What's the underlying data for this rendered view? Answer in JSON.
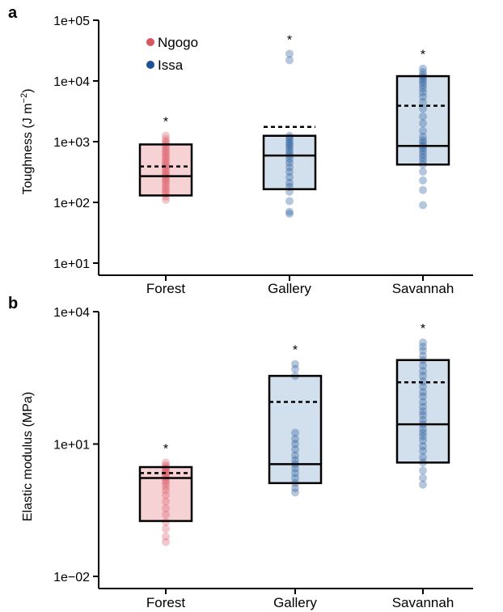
{
  "colors": {
    "ngogo_fill": "#f6d2d4",
    "ngogo_point": "#d9555f",
    "issa_fill": "#d2dfec",
    "issa_point": "#1d5294"
  },
  "chart_data": [
    {
      "type": "box-strip",
      "panel": "a",
      "ylabel_main": "Toughness (J m",
      "ylabel_sup": "−2",
      "ylabel_end": ")",
      "yscale": "log",
      "ylim": [
        10,
        100000
      ],
      "yticks": [
        {
          "value": 10,
          "label": "1e+01"
        },
        {
          "value": 100,
          "label": "1e+02"
        },
        {
          "value": 1000,
          "label": "1e+03"
        },
        {
          "value": 10000,
          "label": "1e+04"
        },
        {
          "value": 100000,
          "label": "1e+05"
        }
      ],
      "categories": [
        "Forest",
        "Gallery",
        "Savannah"
      ],
      "legend": {
        "placement": "top-left",
        "entries": [
          "Ngogo",
          "Issa"
        ]
      },
      "annotations": [
        "*",
        "*",
        "*"
      ],
      "groups": [
        {
          "category": "Forest",
          "site": "Ngogo",
          "q1": 130,
          "median": 270,
          "q3": 900,
          "mean": 390,
          "points": [
            110,
            125,
            140,
            155,
            170,
            190,
            210,
            230,
            250,
            270,
            290,
            310,
            340,
            370,
            400,
            440,
            480,
            530,
            580,
            640,
            700,
            770,
            850,
            930,
            1000,
            1100,
            1250
          ]
        },
        {
          "category": "Gallery",
          "site": "Issa",
          "q1": 165,
          "median": 590,
          "q3": 1250,
          "mean": 1750,
          "points": [
            65,
            70,
            105,
            150,
            180,
            210,
            260,
            320,
            380,
            450,
            520,
            590,
            650,
            720,
            800,
            880,
            950,
            1050,
            1150,
            1250,
            22000,
            28000
          ]
        },
        {
          "category": "Savannah",
          "site": "Issa",
          "q1": 420,
          "median": 850,
          "q3": 12000,
          "mean": 3900,
          "points": [
            90,
            160,
            230,
            320,
            420,
            480,
            550,
            620,
            700,
            780,
            850,
            950,
            1050,
            1200,
            1500,
            2000,
            2600,
            3500,
            4500,
            5500,
            6500,
            7500,
            8500,
            9500,
            10500,
            11500,
            12500,
            14000,
            16000
          ]
        }
      ]
    },
    {
      "type": "box-strip",
      "panel": "b",
      "ylabel": "Elastic modulus (MPa)",
      "yscale": "log",
      "ylim": [
        0.01,
        10000
      ],
      "yticks": [
        {
          "value": 0.01,
          "label": "1e−02"
        },
        {
          "value": 10,
          "label": "1e+01"
        },
        {
          "value": 10000,
          "label": "1e+04"
        }
      ],
      "categories": [
        "Forest",
        "Gallery",
        "Savannah"
      ],
      "annotations": [
        "*",
        "*",
        "*"
      ],
      "groups": [
        {
          "category": "Forest",
          "site": "Ngogo",
          "q1": 0.18,
          "median": 1.7,
          "q3": 3.0,
          "mean": 2.2,
          "points": [
            0.06,
            0.08,
            0.12,
            0.17,
            0.25,
            0.35,
            0.5,
            0.7,
            0.9,
            1.1,
            1.3,
            1.5,
            1.7,
            1.9,
            2.1,
            2.3,
            2.5,
            2.7,
            3.0,
            3.3,
            3.8
          ]
        },
        {
          "category": "Gallery",
          "site": "Issa",
          "q1": 1.3,
          "median": 3.5,
          "q3": 350,
          "mean": 90,
          "points": [
            0.8,
            1.0,
            1.3,
            1.7,
            2.2,
            2.8,
            3.5,
            4.3,
            5.5,
            7.5,
            10,
            13,
            18,
            350,
            500,
            650
          ]
        },
        {
          "category": "Savannah",
          "site": "Issa",
          "q1": 3.8,
          "median": 28,
          "q3": 800,
          "mean": 250,
          "points": [
            1.2,
            1.7,
            2.5,
            3.8,
            5,
            7,
            9,
            12,
            15,
            18,
            22,
            28,
            35,
            45,
            55,
            70,
            90,
            120,
            150,
            200,
            260,
            350,
            450,
            600,
            800,
            1000,
            1300,
            1600,
            2000
          ]
        }
      ]
    }
  ]
}
